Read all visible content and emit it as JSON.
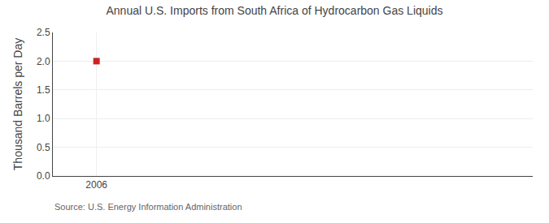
{
  "chart_data": {
    "type": "scatter",
    "title": "Annual U.S. Imports from South Africa of Hydrocarbon Gas Liquids",
    "ylabel": "Thousand Barrels per Day",
    "x": [
      2006
    ],
    "values": [
      2.0
    ],
    "color": "#cc2222",
    "marker": "square",
    "xlim": [
      2005.3,
      2013
    ],
    "xticks": [
      2006
    ],
    "ylim": [
      0.0,
      2.5
    ],
    "yticks": [
      {
        "value": 0.0,
        "label": "0.0"
      },
      0.5,
      {
        "value": 1.0,
        "label": "1.0"
      },
      1.5,
      {
        "value": 2.0,
        "label": "2.0"
      },
      2.5
    ],
    "grid": true,
    "annotations": [
      "Source: U.S. Energy Information Administration"
    ]
  }
}
